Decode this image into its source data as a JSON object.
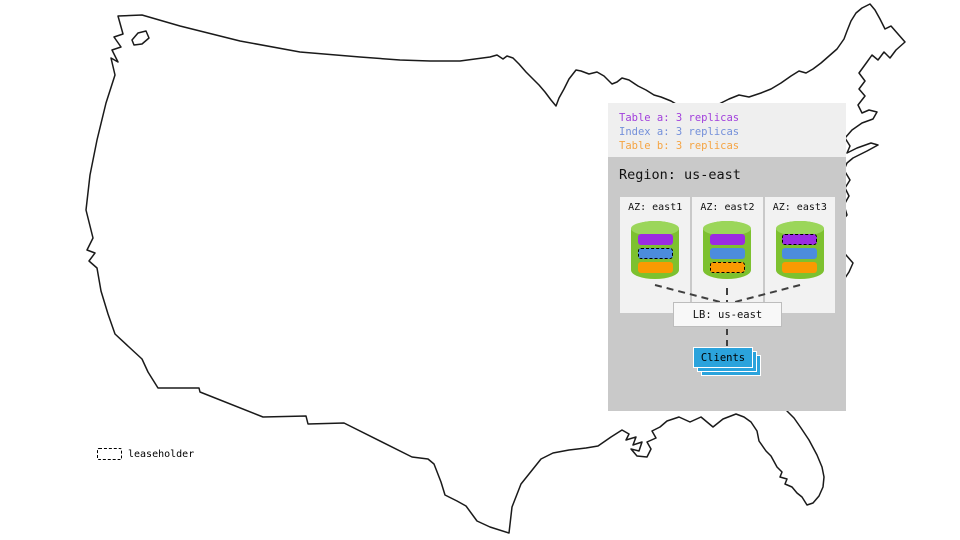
{
  "panel_legend": {
    "table_a": "Table a: 3 replicas",
    "index_a": "Index a: 3 replicas",
    "table_b": "Table b: 3 replicas"
  },
  "region": {
    "title": "Region: us-east",
    "azs": [
      {
        "label": "AZ: east1",
        "replicas": [
          {
            "table": "table_a",
            "leaseholder": false
          },
          {
            "table": "index_a",
            "leaseholder": true
          },
          {
            "table": "table_b",
            "leaseholder": false
          }
        ]
      },
      {
        "label": "AZ: east2",
        "replicas": [
          {
            "table": "table_a",
            "leaseholder": false
          },
          {
            "table": "index_a",
            "leaseholder": false
          },
          {
            "table": "table_b",
            "leaseholder": true
          }
        ]
      },
      {
        "label": "AZ: east3",
        "replicas": [
          {
            "table": "table_a",
            "leaseholder": true
          },
          {
            "table": "index_a",
            "leaseholder": false
          },
          {
            "table": "table_b",
            "leaseholder": false
          }
        ]
      }
    ],
    "lb": {
      "label": "LB: us-east"
    },
    "clients": {
      "label": "Clients"
    }
  },
  "map_legend": {
    "leaseholder_label": "leaseholder"
  },
  "map": {
    "name": "contiguous-us-outline"
  },
  "colors": {
    "panel_top_bg": "#efefef",
    "region_bg": "#c9c9c9",
    "az_bg": "#f2f2f2",
    "lb_bg": "#f8f8f8",
    "lb_border": "#bdbdbd",
    "table_a": "#9b2be2",
    "index_a": "#4c8cdd",
    "table_b": "#fa9a02",
    "legend_table_a": "#a13fdc",
    "legend_index_a": "#7490da",
    "legend_table_b": "#f5a443",
    "cyl_body": "#7dc12f",
    "cyl_top": "#9bd65a",
    "clients_fill": "#2ba3dc",
    "connector": "#3f3f3f",
    "map_stroke": "#1a1a1a",
    "text": "#111111"
  }
}
